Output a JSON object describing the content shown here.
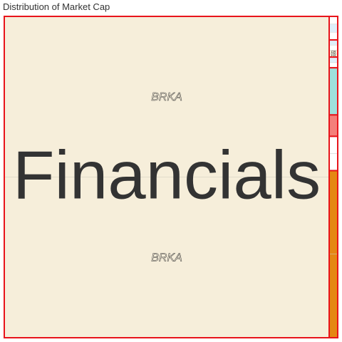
{
  "chart_data": {
    "type": "treemap",
    "title": "Distribution of Market Cap",
    "colors": {
      "border": "#e8141b",
      "financials": "#f6eeda",
      "light_blue": "#dfeffa",
      "teal": "#9fe0dc",
      "salmon": "#f47f7a",
      "white": "#ffffff",
      "orange": "#e58712",
      "text_dark": "#333333"
    },
    "sectors": [
      {
        "name": "Financials",
        "label": "Financials",
        "value": 100,
        "color": "#f6eeda",
        "children": [
          {
            "name": "BRKA",
            "value": 50,
            "color": "#f6eeda"
          },
          {
            "name": "BRKA",
            "value": 50,
            "color": "#f6eeda"
          }
        ]
      },
      {
        "name": "",
        "value": 0.55,
        "color": "#dfeffa",
        "children": [
          {
            "name": "",
            "value": 0.18,
            "color": "#ffffff"
          },
          {
            "name": "",
            "value": 0.19,
            "color": "#dfeffa"
          },
          {
            "name": "",
            "value": 0.18,
            "color": "#ffffff"
          }
        ]
      },
      {
        "name": "",
        "value": 0.4,
        "color": "#f6eeda",
        "children": [
          {
            "name": "",
            "value": 0.12,
            "color": "#dfeffa"
          },
          {
            "name": "",
            "value": 0.12,
            "color": "#ffffff"
          },
          {
            "name": "FB",
            "value": 0.08,
            "color": "#f6eeda"
          },
          {
            "name": "FB",
            "value": 0.08,
            "color": "#f6eeda"
          }
        ]
      },
      {
        "name": "",
        "value": 0.25,
        "color": "#dfeffa",
        "children": [
          {
            "name": "",
            "value": 0.13,
            "color": "#dfeffa"
          },
          {
            "name": "",
            "value": 0.12,
            "color": "#ffffff"
          }
        ]
      },
      {
        "name": "",
        "value": 1.1,
        "color": "#9fe0dc",
        "children": [
          {
            "name": "",
            "value": 1.1,
            "color": "#9fe0dc"
          }
        ]
      },
      {
        "name": "",
        "value": 0.5,
        "color": "#f47f7a",
        "children": [
          {
            "name": "",
            "value": 0.5,
            "color": "#f47f7a"
          }
        ]
      },
      {
        "name": "",
        "value": 0.8,
        "color": "#ffffff",
        "children": [
          {
            "name": "",
            "value": 0.4,
            "color": "#ffffff"
          },
          {
            "name": "",
            "value": 0.4,
            "color": "#ffffff"
          }
        ]
      },
      {
        "name": "",
        "value": 3.9,
        "color": "#e58712",
        "children": [
          {
            "name": "",
            "value": 1.95,
            "color": "#e58712"
          },
          {
            "name": "",
            "value": 1.95,
            "color": "#e58712"
          }
        ]
      }
    ]
  }
}
